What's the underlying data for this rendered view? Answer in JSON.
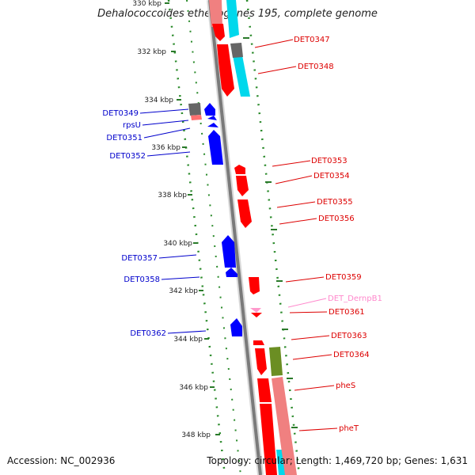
{
  "title": "Dehalococcoides ethenogenes 195, complete genome",
  "footer": {
    "accession": "Accession: NC_002936",
    "topology": "Topology: circular; Length: 1,469,720 bp; Genes: 1,631"
  },
  "colors": {
    "forward_cds": "#ff0000",
    "reverse_cds": "#0000ff",
    "rna": "#ff99cc",
    "gc_skew": "#00bfd8",
    "gc_content": "#ff8080",
    "gray_feature": "#666666",
    "olive_feature": "#6b8e23",
    "ruler": "#2a7a2a",
    "backbone": "#8c8c8c"
  },
  "ruler_labels": [
    "330 kbp",
    "332 kbp",
    "334 kbp",
    "336 kbp",
    "338 kbp",
    "340 kbp",
    "342 kbp",
    "344 kbp",
    "346 kbp",
    "348 kbp"
  ],
  "left_labels": [
    "DET0349",
    "rpsU",
    "DET0351",
    "DET0352",
    "DET0357",
    "DET0358",
    "DET0362"
  ],
  "right_labels": [
    "DET0347",
    "DET0348",
    "DET0353",
    "DET0354",
    "DET0355",
    "DET0356",
    "DET0359",
    "DET_DernpB1",
    "DET0361",
    "DET0363",
    "DET0364",
    "pheS",
    "pheT"
  ]
}
